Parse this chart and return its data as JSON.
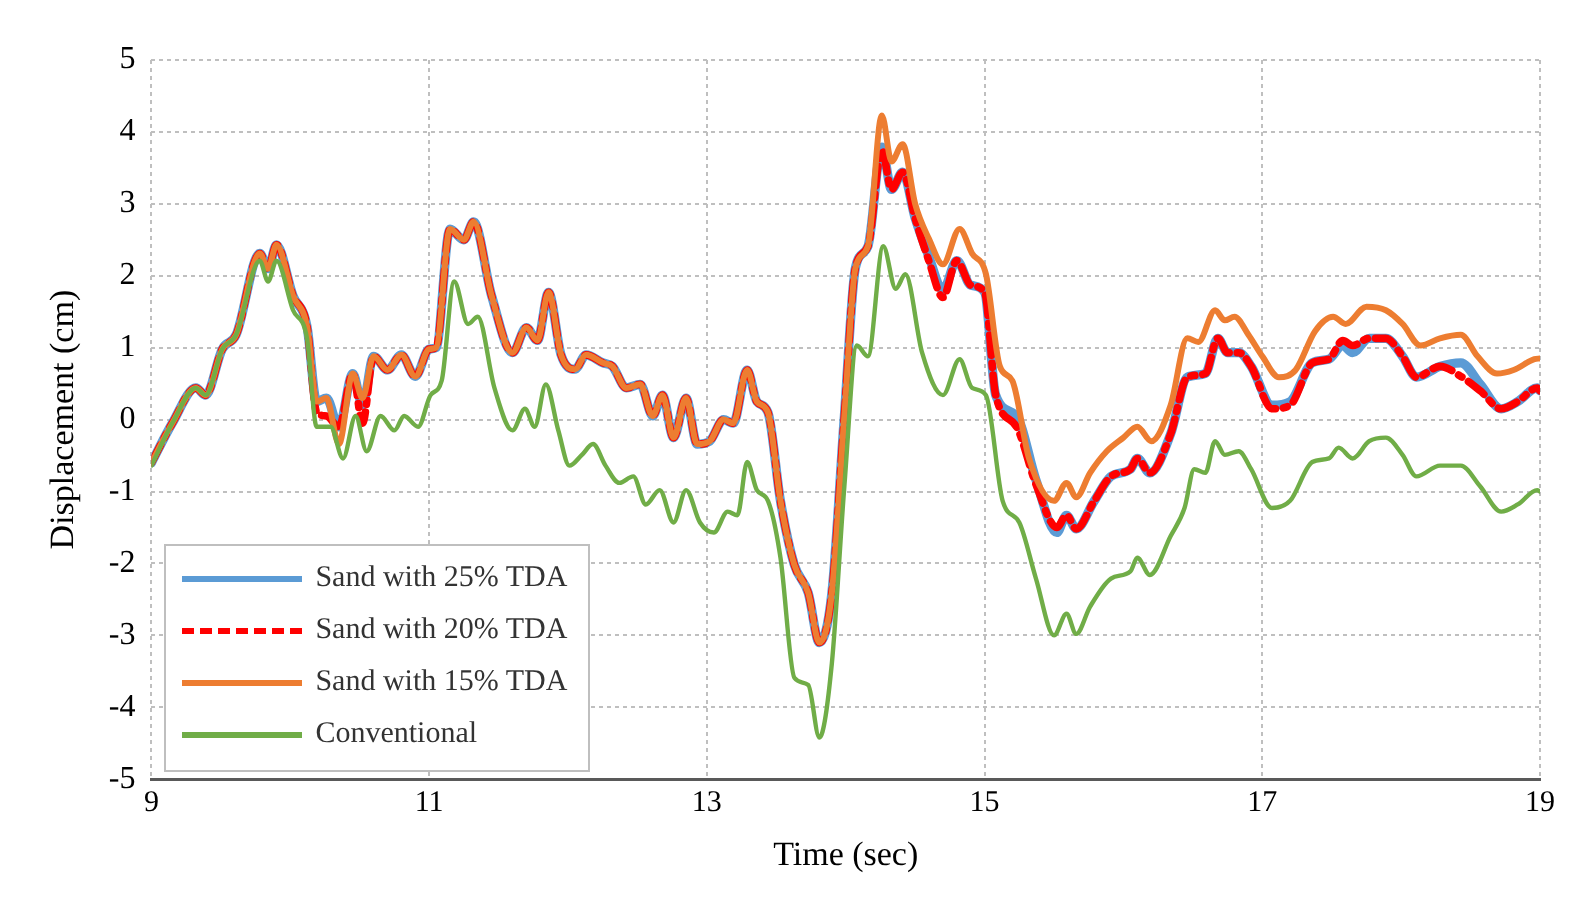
{
  "chart_data": {
    "type": "line",
    "xlabel": "Time (sec)",
    "ylabel": "Displacement (cm)",
    "xlim": [
      9,
      19
    ],
    "xticks": [
      9,
      11,
      13,
      15,
      17,
      19
    ],
    "ylim": [
      -5,
      5
    ],
    "yticks": [
      -5,
      -4,
      -3,
      -2,
      -1,
      0,
      1,
      2,
      3,
      4,
      5
    ],
    "grid": true,
    "legend": "bottom left",
    "marker": "none",
    "series": [
      {
        "name": "Sand with 25% TDA",
        "color": "#5b9bd5",
        "x": [
          9.0,
          9.15,
          9.32,
          9.39,
          9.51,
          9.61,
          9.78,
          9.84,
          9.9,
          10.02,
          10.12,
          10.19,
          10.26,
          10.35,
          10.45,
          10.52,
          10.6,
          10.7,
          10.8,
          10.9,
          11.0,
          11.05,
          11.15,
          11.25,
          11.32,
          11.45,
          11.6,
          11.7,
          11.78,
          11.86,
          11.95,
          12.05,
          12.13,
          12.25,
          12.32,
          12.42,
          12.52,
          12.61,
          12.68,
          12.76,
          12.85,
          12.93,
          13.02,
          13.12,
          13.19,
          13.29,
          13.36,
          13.44,
          13.53,
          13.63,
          13.73,
          13.81,
          13.9,
          13.99,
          14.07,
          14.16,
          14.26,
          14.33,
          14.41,
          14.5,
          14.6,
          14.7,
          14.8,
          14.9,
          15.0,
          15.08,
          15.23,
          15.37,
          15.52,
          15.59,
          15.66,
          15.79,
          15.91,
          16.05,
          16.1,
          16.19,
          16.34,
          16.46,
          16.59,
          16.68,
          16.75,
          16.83,
          16.92,
          17.07,
          17.2,
          17.36,
          17.48,
          17.58,
          17.65,
          17.77,
          17.89,
          18.01,
          18.11,
          18.28,
          18.43,
          18.57,
          18.72,
          18.84,
          18.98,
          19.0
        ],
        "values": [
          -0.6,
          -0.05,
          0.44,
          0.34,
          0.98,
          1.18,
          2.31,
          2.1,
          2.43,
          1.72,
          1.3,
          0.25,
          0.3,
          -0.1,
          0.64,
          0.2,
          0.88,
          0.69,
          0.9,
          0.6,
          0.98,
          1.0,
          2.65,
          2.5,
          2.75,
          1.72,
          0.93,
          1.28,
          1.1,
          1.77,
          0.9,
          0.7,
          0.9,
          0.79,
          0.74,
          0.44,
          0.49,
          0.05,
          0.34,
          -0.25,
          0.3,
          -0.34,
          -0.3,
          0,
          -0.05,
          0.69,
          0.25,
          0.1,
          -1.13,
          -2.02,
          -2.41,
          -3.1,
          -2.41,
          0.05,
          2.11,
          2.41,
          3.79,
          3.2,
          3.44,
          2.8,
          2.26,
          1.8,
          2.21,
          1.87,
          1.77,
          0.34,
          0.05,
          -0.84,
          -1.57,
          -1.33,
          -1.52,
          -1.13,
          -0.79,
          -0.69,
          -0.54,
          -0.74,
          -0.2,
          0.59,
          0.64,
          1.13,
          0.93,
          0.93,
          0.74,
          0.2,
          0.25,
          0.79,
          0.84,
          1.03,
          0.93,
          1.13,
          1.13,
          0.88,
          0.59,
          0.74,
          0.79,
          0.49,
          0.15,
          0.25,
          0.44,
          0.4
        ]
      },
      {
        "name": "Sand with 20% TDA",
        "color": "#ff0000",
        "line_style": "dashed",
        "x": [
          9.0,
          9.15,
          9.32,
          9.39,
          9.51,
          9.61,
          9.78,
          9.84,
          9.9,
          10.02,
          10.12,
          10.19,
          10.26,
          10.35,
          10.45,
          10.52,
          10.6,
          10.7,
          10.8,
          10.9,
          11.0,
          11.05,
          11.15,
          11.25,
          11.32,
          11.45,
          11.6,
          11.7,
          11.78,
          11.86,
          11.95,
          12.05,
          12.13,
          12.25,
          12.32,
          12.42,
          12.52,
          12.61,
          12.68,
          12.76,
          12.85,
          12.93,
          13.02,
          13.12,
          13.19,
          13.29,
          13.36,
          13.44,
          13.53,
          13.63,
          13.73,
          13.81,
          13.9,
          13.99,
          14.07,
          14.16,
          14.26,
          14.33,
          14.41,
          14.5,
          14.6,
          14.7,
          14.8,
          14.9,
          15.0,
          15.08,
          15.23,
          15.37,
          15.52,
          15.59,
          15.66,
          15.79,
          15.91,
          16.05,
          16.1,
          16.19,
          16.34,
          16.46,
          16.59,
          16.68,
          16.75,
          16.83,
          16.92,
          17.07,
          17.2,
          17.36,
          17.48,
          17.58,
          17.65,
          17.77,
          17.89,
          18.01,
          18.11,
          18.28,
          18.43,
          18.57,
          18.72,
          18.84,
          18.98,
          19.0
        ],
        "values": [
          -0.6,
          -0.05,
          0.44,
          0.34,
          0.98,
          1.18,
          2.31,
          2.1,
          2.43,
          1.72,
          1.3,
          0.1,
          0.05,
          -0.1,
          0.64,
          -0.05,
          0.88,
          0.69,
          0.9,
          0.6,
          0.98,
          1.0,
          2.65,
          2.5,
          2.75,
          1.72,
          0.93,
          1.28,
          1.1,
          1.77,
          0.9,
          0.7,
          0.9,
          0.79,
          0.74,
          0.44,
          0.49,
          0.05,
          0.34,
          -0.25,
          0.3,
          -0.34,
          -0.3,
          0,
          -0.05,
          0.69,
          0.25,
          0.1,
          -1.13,
          -2.02,
          -2.41,
          -3.1,
          -2.41,
          0.05,
          2.11,
          2.41,
          3.75,
          3.2,
          3.44,
          2.8,
          2.2,
          1.7,
          2.21,
          1.87,
          1.77,
          0.34,
          -0.1,
          -0.9,
          -1.5,
          -1.33,
          -1.52,
          -1.13,
          -0.79,
          -0.69,
          -0.54,
          -0.74,
          -0.2,
          0.59,
          0.64,
          1.13,
          0.93,
          0.93,
          0.74,
          0.15,
          0.2,
          0.79,
          0.84,
          1.1,
          1.03,
          1.13,
          1.13,
          0.88,
          0.59,
          0.74,
          0.6,
          0.4,
          0.15,
          0.25,
          0.44,
          0.4
        ]
      },
      {
        "name": "Sand with 15% TDA",
        "color": "#ed7d31",
        "x": [
          9.0,
          9.15,
          9.32,
          9.39,
          9.51,
          9.61,
          9.78,
          9.84,
          9.9,
          10.02,
          10.12,
          10.19,
          10.26,
          10.35,
          10.45,
          10.52,
          10.6,
          10.7,
          10.8,
          10.9,
          11.0,
          11.05,
          11.15,
          11.25,
          11.32,
          11.45,
          11.6,
          11.7,
          11.78,
          11.86,
          11.95,
          12.05,
          12.13,
          12.25,
          12.32,
          12.42,
          12.52,
          12.61,
          12.68,
          12.76,
          12.85,
          12.93,
          13.02,
          13.12,
          13.19,
          13.29,
          13.36,
          13.44,
          13.53,
          13.63,
          13.73,
          13.81,
          13.9,
          13.99,
          14.07,
          14.16,
          14.26,
          14.33,
          14.41,
          14.5,
          14.6,
          14.7,
          14.82,
          14.91,
          15.01,
          15.11,
          15.2,
          15.32,
          15.5,
          15.59,
          15.66,
          15.76,
          15.88,
          16.0,
          16.1,
          16.2,
          16.34,
          16.46,
          16.54,
          16.66,
          16.73,
          16.8,
          16.9,
          17.0,
          17.12,
          17.24,
          17.38,
          17.51,
          17.6,
          17.75,
          17.89,
          18.01,
          18.14,
          18.28,
          18.43,
          18.55,
          18.69,
          18.81,
          18.96,
          19.0
        ],
        "values": [
          -0.6,
          -0.05,
          0.44,
          0.34,
          0.98,
          1.18,
          2.31,
          2.1,
          2.43,
          1.72,
          1.3,
          0.25,
          0.3,
          -0.34,
          0.64,
          0.3,
          0.88,
          0.69,
          0.9,
          0.6,
          0.98,
          1.0,
          2.65,
          2.5,
          2.75,
          1.72,
          0.93,
          1.28,
          1.1,
          1.77,
          0.9,
          0.7,
          0.9,
          0.79,
          0.74,
          0.44,
          0.49,
          0.05,
          0.34,
          -0.25,
          0.3,
          -0.34,
          -0.3,
          0,
          -0.05,
          0.69,
          0.25,
          0.1,
          -1.13,
          -2.02,
          -2.41,
          -3.1,
          -2.41,
          0.05,
          2.11,
          2.41,
          4.23,
          3.59,
          3.83,
          3.0,
          2.51,
          2.16,
          2.65,
          2.31,
          2.02,
          0.74,
          0.54,
          -0.54,
          -1.13,
          -0.88,
          -1.08,
          -0.74,
          -0.44,
          -0.25,
          -0.1,
          -0.3,
          0.2,
          1.13,
          1.08,
          1.52,
          1.38,
          1.43,
          1.18,
          0.88,
          0.59,
          0.69,
          1.23,
          1.43,
          1.33,
          1.57,
          1.52,
          1.33,
          1.03,
          1.13,
          1.18,
          0.88,
          0.64,
          0.69,
          0.84,
          0.85
        ]
      },
      {
        "name": "Conventional",
        "color": "#70ad47",
        "x": [
          9.0,
          9.15,
          9.32,
          9.39,
          9.51,
          9.61,
          9.78,
          9.84,
          9.9,
          10.02,
          10.12,
          10.19,
          10.29,
          10.38,
          10.47,
          10.55,
          10.65,
          10.75,
          10.82,
          10.92,
          11.01,
          11.09,
          11.18,
          11.28,
          11.35,
          11.47,
          11.6,
          11.69,
          11.76,
          11.84,
          11.93,
          12.01,
          12.1,
          12.18,
          12.27,
          12.37,
          12.47,
          12.56,
          12.66,
          12.76,
          12.85,
          12.95,
          13.05,
          13.15,
          13.22,
          13.29,
          13.36,
          13.44,
          13.53,
          13.63,
          13.73,
          13.81,
          13.9,
          13.99,
          14.08,
          14.16,
          14.27,
          14.36,
          14.43,
          14.55,
          14.7,
          14.82,
          14.91,
          15.01,
          15.13,
          15.25,
          15.37,
          15.5,
          15.59,
          15.66,
          15.76,
          15.91,
          16.05,
          16.1,
          16.19,
          16.34,
          16.44,
          16.51,
          16.59,
          16.66,
          16.73,
          16.83,
          16.92,
          17.07,
          17.2,
          17.36,
          17.48,
          17.55,
          17.65,
          17.77,
          17.89,
          18.01,
          18.11,
          18.28,
          18.43,
          18.57,
          18.72,
          18.84,
          18.98,
          19.0
        ],
        "values": [
          -0.64,
          -0.05,
          0.44,
          0.34,
          0.98,
          1.18,
          2.21,
          1.92,
          2.21,
          1.52,
          1.13,
          -0.1,
          -0.1,
          -0.54,
          0.05,
          -0.44,
          0.05,
          -0.15,
          0.05,
          -0.1,
          0.34,
          0.54,
          1.92,
          1.33,
          1.43,
          0.44,
          -0.15,
          0.15,
          -0.1,
          0.49,
          -0.15,
          -0.64,
          -0.49,
          -0.34,
          -0.64,
          -0.88,
          -0.79,
          -1.18,
          -0.98,
          -1.43,
          -0.98,
          -1.43,
          -1.57,
          -1.28,
          -1.33,
          -0.59,
          -0.98,
          -1.13,
          -1.92,
          -3.59,
          -3.69,
          -4.42,
          -3.39,
          -0.93,
          1.03,
          0.88,
          2.41,
          1.82,
          2.02,
          0.93,
          0.34,
          0.84,
          0.44,
          0.34,
          -1.13,
          -1.43,
          -2.21,
          -3.0,
          -2.7,
          -2.98,
          -2.6,
          -2.21,
          -2.11,
          -1.92,
          -2.16,
          -1.62,
          -1.23,
          -0.69,
          -0.74,
          -0.3,
          -0.49,
          -0.44,
          -0.69,
          -1.23,
          -1.13,
          -0.59,
          -0.54,
          -0.39,
          -0.54,
          -0.3,
          -0.25,
          -0.49,
          -0.79,
          -0.64,
          -0.64,
          -0.93,
          -1.28,
          -1.18,
          -0.98,
          -1.0
        ]
      }
    ]
  }
}
